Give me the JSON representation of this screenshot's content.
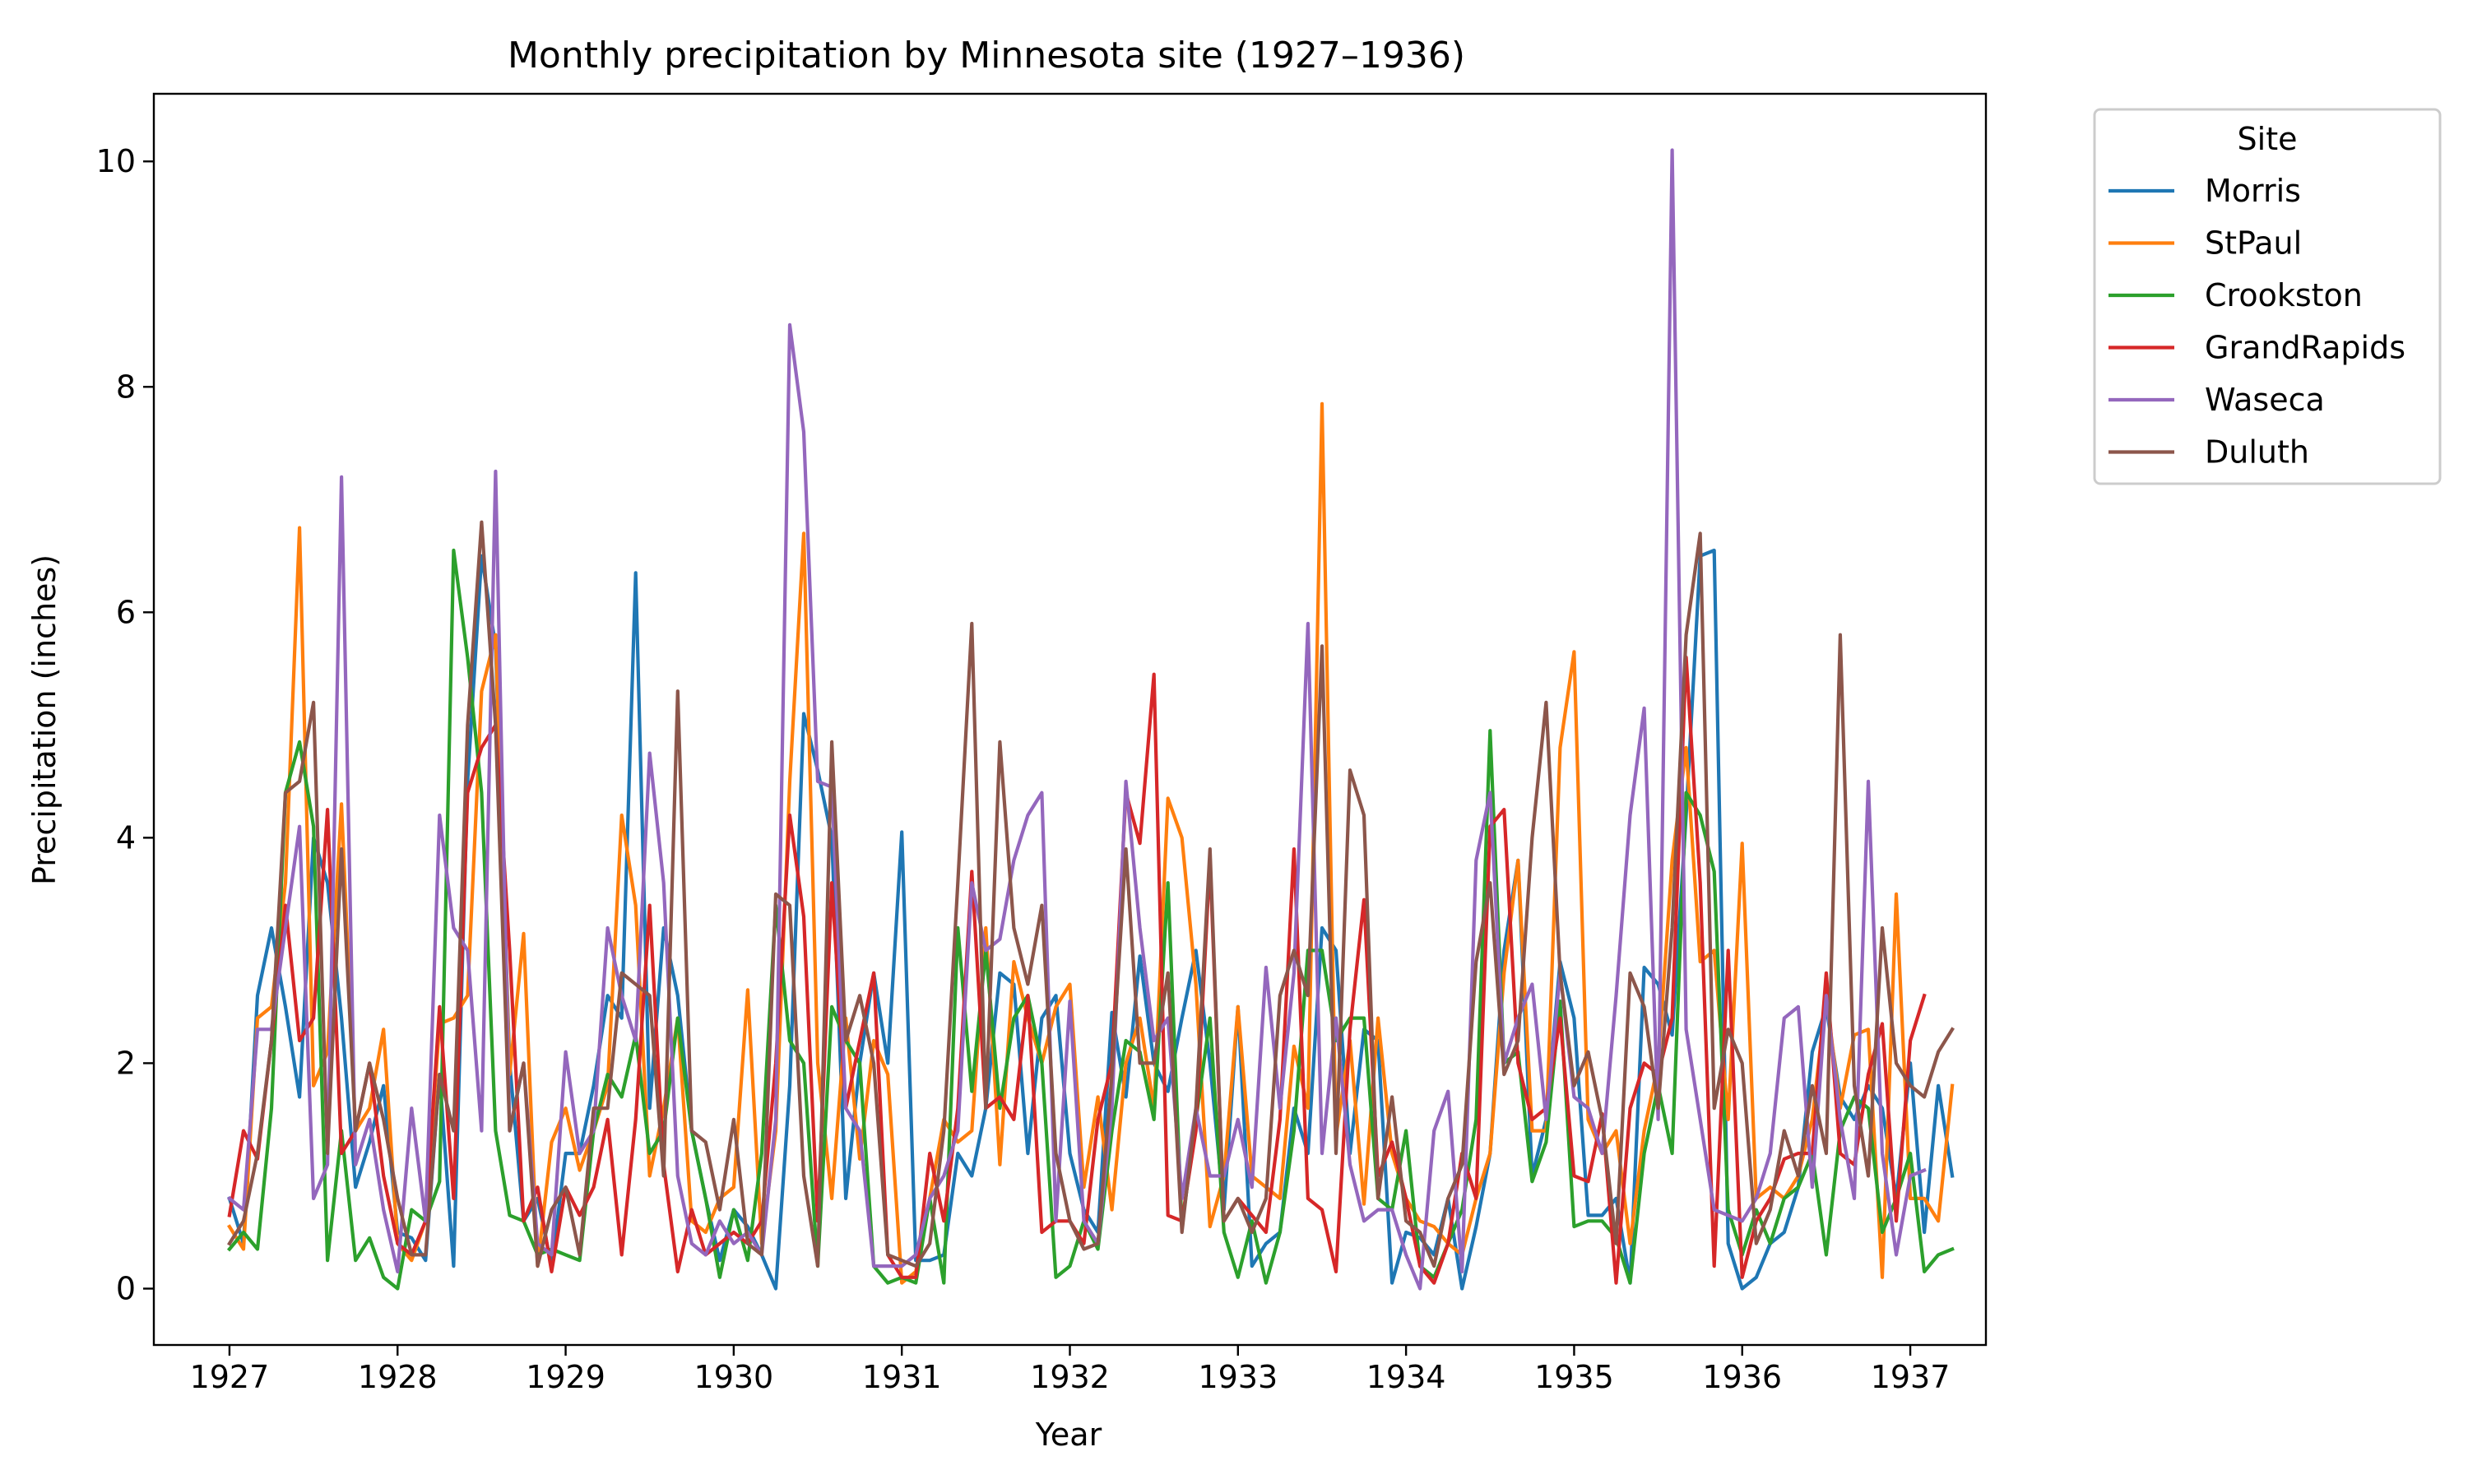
{
  "chart_data": {
    "type": "line",
    "title": "Monthly precipitation by Minnesota site (1927–1936)",
    "xlabel": "Year",
    "ylabel": "Precipitation (inches)",
    "xlim": [
      1926.55,
      1937.45
    ],
    "ylim": [
      -0.5,
      10.6
    ],
    "xticks": [
      1927,
      1928,
      1929,
      1930,
      1931,
      1932,
      1933,
      1934,
      1935,
      1936,
      1937
    ],
    "yticks": [
      0,
      2,
      4,
      6,
      8,
      10
    ],
    "grid": false,
    "legend": {
      "title": "Site",
      "placement": "outside-top-right"
    },
    "x_note": "one point per month, starting January 1927",
    "series": [
      {
        "name": "Morris",
        "color": "#1f77b4",
        "values": [
          0.8,
          0.4,
          2.6,
          3.2,
          2.5,
          1.7,
          4.0,
          3.6,
          2.4,
          0.9,
          1.3,
          1.8,
          0.5,
          0.45,
          0.25,
          1.9,
          0.2,
          4.5,
          6.5,
          5.7,
          2.0,
          0.6,
          0.8,
          0.2,
          1.2,
          1.2,
          1.8,
          2.6,
          2.4,
          6.35,
          1.6,
          3.2,
          2.6,
          1.4,
          0.8,
          0.25,
          0.7,
          0.55,
          0.3,
          0.0,
          1.8,
          5.1,
          4.6,
          4.0,
          0.8,
          2.0,
          2.8,
          2.0,
          4.05,
          0.25,
          0.25,
          0.3,
          1.2,
          1.0,
          1.6,
          2.8,
          2.7,
          1.2,
          2.4,
          2.6,
          1.2,
          0.7,
          0.5,
          2.45,
          1.7,
          2.95,
          2.0,
          1.75,
          2.4,
          3.0,
          2.0,
          0.7,
          2.5,
          0.2,
          0.4,
          0.5,
          1.6,
          1.2,
          3.2,
          3.0,
          1.2,
          2.3,
          2.2,
          0.05,
          0.5,
          0.45,
          0.3,
          0.8,
          0.0,
          0.55,
          1.2,
          3.0,
          3.8,
          1.0,
          1.5,
          2.9,
          2.4,
          0.65,
          0.65,
          0.8,
          0.05,
          2.85,
          2.7,
          2.25,
          4.2,
          6.5,
          6.55,
          0.4,
          0.0,
          0.1,
          0.4,
          0.5,
          0.9,
          2.1,
          2.5,
          1.7,
          1.5,
          1.8,
          1.6,
          0.8,
          2.0,
          0.5,
          1.8,
          1.0
        ]
      },
      {
        "name": "StPaul",
        "color": "#ff7f0e",
        "values": [
          0.55,
          0.35,
          2.4,
          2.5,
          3.6,
          6.75,
          1.8,
          2.1,
          4.3,
          1.4,
          1.6,
          2.3,
          0.4,
          0.25,
          0.6,
          2.35,
          2.4,
          2.6,
          5.3,
          5.8,
          1.9,
          3.15,
          0.2,
          1.3,
          1.6,
          1.05,
          1.4,
          1.8,
          4.2,
          3.4,
          1.0,
          1.6,
          2.4,
          0.6,
          0.5,
          0.8,
          0.9,
          2.65,
          0.4,
          1.4,
          4.5,
          6.7,
          2.0,
          0.8,
          2.4,
          1.15,
          2.2,
          1.9,
          0.05,
          0.15,
          0.8,
          1.5,
          1.3,
          1.4,
          3.2,
          1.1,
          2.9,
          2.4,
          2.0,
          2.5,
          2.7,
          0.9,
          1.7,
          0.7,
          2.0,
          2.4,
          1.6,
          4.35,
          4.0,
          2.7,
          0.55,
          1.0,
          2.5,
          1.0,
          0.9,
          0.8,
          2.15,
          1.6,
          7.85,
          1.35,
          2.2,
          0.75,
          2.4,
          1.2,
          0.8,
          0.6,
          0.55,
          0.4,
          0.3,
          0.8,
          1.2,
          2.8,
          3.8,
          1.4,
          1.4,
          4.8,
          5.65,
          1.5,
          1.2,
          1.4,
          0.4,
          1.4,
          2.0,
          3.8,
          4.8,
          2.9,
          3.0,
          1.5,
          3.95,
          0.8,
          0.9,
          0.8,
          1.0,
          1.5,
          2.6,
          1.6,
          2.25,
          2.3,
          0.1,
          3.5,
          0.8,
          0.8,
          0.6,
          1.8
        ]
      },
      {
        "name": "Crookston",
        "color": "#2ca02c",
        "values": [
          0.35,
          0.5,
          0.35,
          1.6,
          4.4,
          4.85,
          4.1,
          0.25,
          1.4,
          0.25,
          0.45,
          0.1,
          0.0,
          0.7,
          0.6,
          0.95,
          6.55,
          5.6,
          4.4,
          1.4,
          0.65,
          0.6,
          0.3,
          0.35,
          0.3,
          0.25,
          1.4,
          1.9,
          1.7,
          2.25,
          1.2,
          1.4,
          2.4,
          1.4,
          0.8,
          0.1,
          0.7,
          0.25,
          1.2,
          3.4,
          2.2,
          2.0,
          0.2,
          2.5,
          2.2,
          2.0,
          0.2,
          0.05,
          0.1,
          0.05,
          0.8,
          0.05,
          3.2,
          1.75,
          3.0,
          1.6,
          2.4,
          2.6,
          2.0,
          0.1,
          0.2,
          0.6,
          0.35,
          1.4,
          2.2,
          2.1,
          1.5,
          3.6,
          0.55,
          1.5,
          2.4,
          0.5,
          0.1,
          0.6,
          0.05,
          0.5,
          1.4,
          3.0,
          3.0,
          2.2,
          2.4,
          2.4,
          0.8,
          0.7,
          1.4,
          0.2,
          0.1,
          0.4,
          0.7,
          1.5,
          4.95,
          2.0,
          2.1,
          0.95,
          1.3,
          2.55,
          0.55,
          0.6,
          0.6,
          0.45,
          0.05,
          1.2,
          1.8,
          1.2,
          4.4,
          4.2,
          3.7,
          0.7,
          0.3,
          0.7,
          0.4,
          0.8,
          0.9,
          1.2,
          0.3,
          1.4,
          1.7,
          1.6,
          0.5,
          0.8,
          1.2,
          0.15,
          0.3,
          0.35
        ]
      },
      {
        "name": "GrandRapids",
        "color": "#d62728",
        "values": [
          0.65,
          1.4,
          1.15,
          2.2,
          3.4,
          2.2,
          2.4,
          4.25,
          1.2,
          1.4,
          2.0,
          1.0,
          0.4,
          0.3,
          0.6,
          2.5,
          0.8,
          4.4,
          4.8,
          5.0,
          3.0,
          0.6,
          0.9,
          0.15,
          0.9,
          0.65,
          0.9,
          1.5,
          0.3,
          1.5,
          3.4,
          1.1,
          0.15,
          0.7,
          0.3,
          0.4,
          0.5,
          0.4,
          0.6,
          2.0,
          4.2,
          3.3,
          0.6,
          3.6,
          1.6,
          2.2,
          2.8,
          0.3,
          0.1,
          0.1,
          1.2,
          0.6,
          1.6,
          3.7,
          1.6,
          1.7,
          1.5,
          2.6,
          0.5,
          0.6,
          0.6,
          0.4,
          1.5,
          2.0,
          4.4,
          3.95,
          5.45,
          0.65,
          0.6,
          1.4,
          3.8,
          0.6,
          0.8,
          0.65,
          0.5,
          1.5,
          3.9,
          0.8,
          0.7,
          0.15,
          2.3,
          3.45,
          1.0,
          1.3,
          0.8,
          0.2,
          0.05,
          0.4,
          1.2,
          0.8,
          4.1,
          4.25,
          2.0,
          1.5,
          1.6,
          2.4,
          1.0,
          0.95,
          1.55,
          0.05,
          1.6,
          2.0,
          1.9,
          2.4,
          5.6,
          3.6,
          0.2,
          3.0,
          0.1,
          0.6,
          0.8,
          1.15,
          1.2,
          1.2,
          2.8,
          1.2,
          1.1,
          1.9,
          2.35,
          0.6,
          2.2,
          2.6
        ]
      },
      {
        "name": "Waseca",
        "color": "#9467bd",
        "values": [
          0.8,
          0.7,
          2.3,
          2.3,
          3.2,
          4.1,
          0.8,
          1.1,
          7.2,
          1.1,
          1.5,
          0.7,
          0.15,
          1.6,
          0.6,
          4.2,
          3.2,
          3.0,
          1.4,
          7.25,
          1.4,
          2.0,
          0.4,
          0.3,
          2.1,
          1.2,
          1.4,
          3.2,
          2.6,
          2.2,
          4.75,
          3.6,
          1.0,
          0.4,
          0.3,
          0.6,
          0.4,
          0.5,
          0.3,
          1.5,
          8.55,
          7.6,
          4.5,
          4.45,
          1.6,
          1.4,
          0.2,
          0.2,
          0.2,
          0.3,
          0.8,
          1.0,
          1.4,
          3.6,
          3.0,
          3.1,
          3.8,
          4.2,
          4.4,
          0.6,
          2.55,
          0.6,
          0.4,
          1.6,
          4.5,
          3.2,
          2.2,
          2.4,
          0.8,
          1.6,
          1.0,
          1.0,
          1.5,
          0.9,
          2.85,
          1.6,
          2.8,
          5.9,
          1.2,
          2.4,
          1.1,
          0.6,
          0.7,
          0.7,
          0.3,
          0.0,
          1.4,
          1.75,
          0.15,
          3.8,
          4.4,
          2.0,
          2.4,
          2.7,
          1.5,
          2.8,
          1.7,
          1.6,
          1.2,
          2.6,
          4.2,
          5.15,
          1.5,
          10.1,
          2.3,
          1.5,
          0.7,
          0.65,
          0.6,
          0.8,
          1.2,
          2.4,
          2.5,
          0.9,
          2.6,
          1.5,
          0.8,
          4.5,
          1.2,
          0.3,
          1.0,
          1.05
        ]
      },
      {
        "name": "Duluth",
        "color": "#8c564b",
        "values": [
          0.4,
          0.6,
          1.2,
          2.2,
          4.4,
          4.5,
          5.2,
          1.2,
          3.9,
          1.4,
          2.0,
          1.5,
          0.8,
          0.3,
          0.3,
          1.9,
          1.4,
          5.0,
          6.8,
          5.0,
          1.4,
          2.0,
          0.2,
          0.7,
          0.9,
          0.3,
          1.6,
          1.6,
          2.8,
          2.7,
          2.6,
          1.0,
          5.3,
          1.4,
          1.3,
          0.7,
          1.5,
          0.4,
          0.3,
          3.5,
          3.4,
          1.0,
          0.2,
          4.85,
          2.2,
          2.6,
          2.0,
          0.3,
          0.25,
          0.2,
          0.4,
          1.4,
          3.6,
          5.9,
          1.6,
          4.85,
          3.2,
          2.7,
          3.4,
          1.2,
          0.6,
          0.35,
          0.4,
          1.9,
          3.9,
          2.0,
          2.0,
          2.8,
          0.5,
          1.6,
          3.9,
          0.6,
          0.8,
          0.5,
          0.8,
          2.6,
          3.0,
          2.6,
          5.7,
          1.2,
          4.6,
          4.2,
          0.8,
          1.7,
          0.6,
          0.5,
          0.2,
          0.8,
          1.1,
          2.9,
          3.6,
          1.9,
          2.2,
          4.0,
          5.2,
          2.8,
          1.8,
          2.1,
          1.5,
          0.4,
          2.8,
          2.5,
          1.6,
          3.2,
          5.8,
          6.7,
          1.6,
          2.3,
          2.0,
          0.4,
          0.7,
          1.4,
          1.0,
          1.8,
          1.2,
          5.8,
          1.8,
          1.0,
          3.2,
          2.0,
          1.8,
          1.7,
          2.1,
          2.3
        ]
      }
    ]
  }
}
